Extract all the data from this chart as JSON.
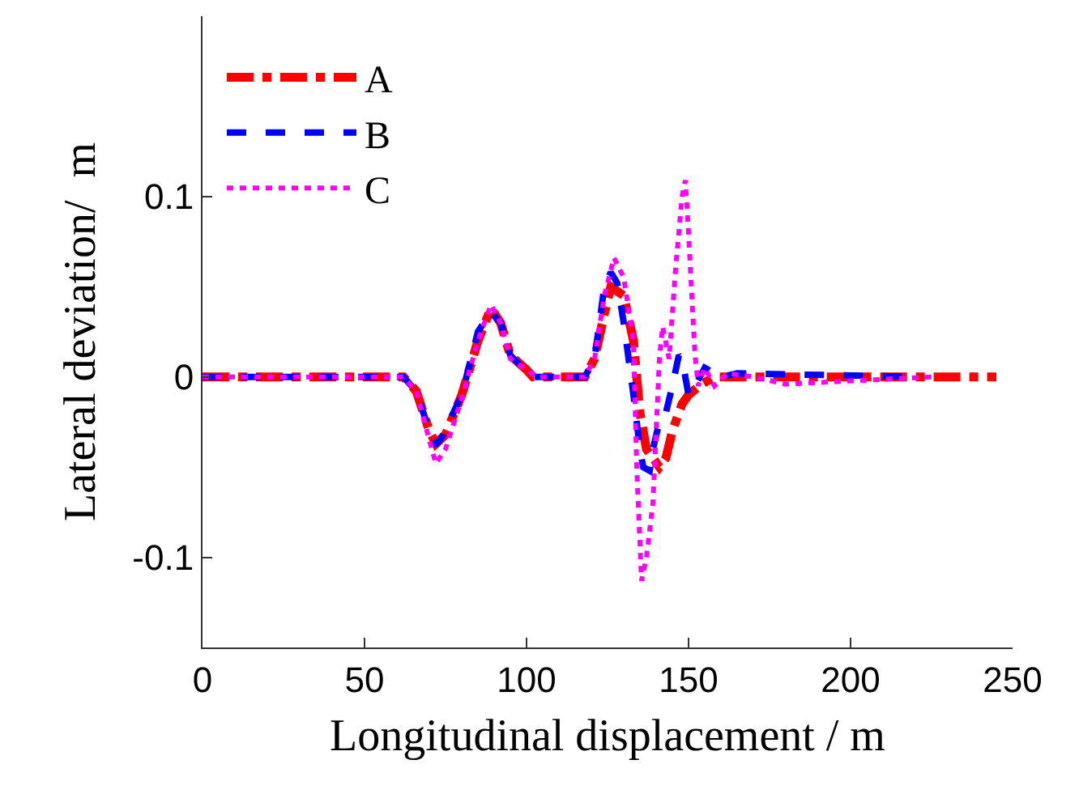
{
  "chart_data": {
    "type": "line",
    "xlabel": "Longitudinal displacement / m",
    "ylabel": "Lateral deviation/  m",
    "xlim": [
      0,
      250
    ],
    "xticks": [
      0,
      50,
      100,
      150,
      200,
      250
    ],
    "ylim": [
      -0.15,
      0.2
    ],
    "yticks": [
      -0.1,
      0,
      0.1
    ],
    "grid": false,
    "legend": "top left",
    "marker": "none",
    "series": [
      {
        "name": "A",
        "color": "#ff0000",
        "line_style": "dashdot",
        "x": [
          0,
          62,
          66,
          70,
          72,
          75,
          80,
          85,
          89,
          92,
          95,
          100,
          102,
          118,
          121,
          124,
          126,
          130,
          133,
          135,
          137,
          139,
          141,
          143,
          145,
          148,
          150,
          154,
          158,
          170,
          245
        ],
        "values": [
          0,
          0,
          -0.008,
          -0.03,
          -0.037,
          -0.032,
          -0.01,
          0.02,
          0.038,
          0.03,
          0.012,
          0.004,
          0,
          0,
          0.01,
          0.035,
          0.05,
          0.045,
          0.02,
          -0.02,
          -0.04,
          -0.045,
          -0.05,
          -0.045,
          -0.03,
          -0.015,
          -0.01,
          -0.004,
          0,
          0,
          0
        ]
      },
      {
        "name": "B",
        "color": "#0000ff",
        "line_style": "dash",
        "x": [
          0,
          62,
          66,
          70,
          72,
          74,
          80,
          85,
          89,
          92,
          95,
          100,
          102,
          118,
          121,
          124,
          126,
          128,
          130,
          133,
          135,
          136,
          138,
          139,
          141,
          143,
          145,
          147,
          148,
          150,
          152,
          155,
          160,
          165,
          222
        ],
        "values": [
          0,
          0,
          -0.008,
          -0.03,
          -0.038,
          -0.033,
          -0.01,
          0.025,
          0.036,
          0.03,
          0.012,
          0.003,
          0,
          0,
          0.01,
          0.05,
          0.058,
          0.052,
          0.03,
          -0.01,
          -0.04,
          -0.05,
          -0.052,
          -0.04,
          -0.025,
          -0.02,
          -0.005,
          0.012,
          0.01,
          -0.01,
          -0.005,
          0.005,
          0,
          0.002,
          0
        ]
      },
      {
        "name": "C",
        "color": "#ff00ff",
        "line_style": "dot",
        "x": [
          0,
          62,
          66,
          70,
          72,
          75,
          80,
          85,
          89,
          92,
          95,
          100,
          103,
          118,
          121,
          124,
          127,
          130,
          133,
          134,
          135.5,
          137,
          139,
          140,
          141,
          142,
          144,
          146,
          148,
          149,
          150,
          151,
          152,
          153,
          155,
          158,
          162,
          170,
          180,
          225
        ],
        "values": [
          0,
          0,
          -0.008,
          -0.035,
          -0.048,
          -0.04,
          -0.012,
          0.02,
          0.04,
          0.03,
          0.01,
          0.004,
          0,
          0,
          0.01,
          0.045,
          0.066,
          0.055,
          0.02,
          -0.05,
          -0.113,
          -0.1,
          -0.07,
          -0.03,
          0.01,
          0.028,
          0.01,
          0.06,
          0.1,
          0.109,
          0.08,
          0.045,
          0.012,
          -0.005,
          0.005,
          -0.005,
          0.002,
          0,
          -0.004,
          0
        ]
      }
    ]
  }
}
